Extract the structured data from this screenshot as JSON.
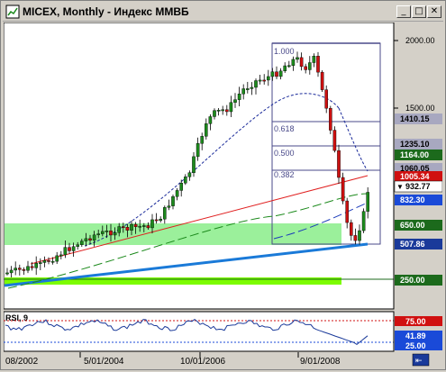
{
  "window": {
    "title": "MICEX, Monthly - Индекс ММВБ",
    "buttons": {
      "minimize": "_",
      "maximize": "□",
      "close": "✕"
    }
  },
  "price_axis": {
    "ticks": [
      "2000.00",
      "1500.00"
    ],
    "badges": [
      {
        "label": "1410.15",
        "bg": "#a8a8c0",
        "fg": "#000000"
      },
      {
        "label": "1235.10",
        "bg": "#a8a8c0",
        "fg": "#000000"
      },
      {
        "label": "1164.00",
        "bg": "#1c6a1c",
        "fg": "#ffffff"
      },
      {
        "label": "1060.05",
        "bg": "#a8a8c0",
        "fg": "#000000"
      },
      {
        "label": "1005.34",
        "bg": "#d01010",
        "fg": "#ffffff"
      },
      {
        "label": "932.77",
        "bg": "#ffffff",
        "fg": "#000000"
      },
      {
        "label": "832.30",
        "bg": "#1a4ad8",
        "fg": "#ffffff"
      },
      {
        "label": "650.00",
        "bg": "#1c6a1c",
        "fg": "#ffffff"
      },
      {
        "label": "507.86",
        "bg": "#1a3a9a",
        "fg": "#ffffff"
      },
      {
        "label": "250.00",
        "bg": "#1c6a1c",
        "fg": "#ffffff"
      }
    ]
  },
  "fib_labels": [
    "1.000",
    "0.618",
    "0.500",
    "0.382"
  ],
  "rsi": {
    "title": "RSI, 9",
    "badges": [
      {
        "label": "75.00",
        "bg": "#d01010",
        "fg": "#ffffff"
      },
      {
        "label": "41.89",
        "bg": "#1a4ad8",
        "fg": "#ffffff"
      },
      {
        "label": "25.00",
        "bg": "#1a4ad8",
        "fg": "#ffffff"
      }
    ]
  },
  "time_axis": [
    "08/2002",
    "5/01/2004",
    "10/01/2006",
    "9/01/2008"
  ],
  "colors": {
    "bull_candle": "#1c8a1c",
    "bear_candle": "#cc1010",
    "support_zone": "#90ee90",
    "trend_blue": "#1a7ad8",
    "trend_red": "#e02020"
  }
}
